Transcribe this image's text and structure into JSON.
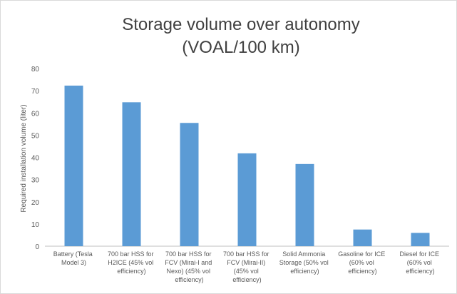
{
  "chart_data": {
    "type": "bar",
    "title": [
      "Storage volume over autonomy",
      "(VOAL/100 km)"
    ],
    "y_label": "Required installation volume (liter)",
    "categories": [
      "Battery (Tesla Model 3)",
      "700 bar HSS for H2ICE (45% vol efficiency)",
      "700 bar HSS for FCV (Mirai-I and Nexo) (45% vol efficiency)",
      "700 bar HSS for FCV (Mirai-II) (45% vol efficiency)",
      "Solid Ammonia Storage (50% vol efficiency)",
      "Gasoline for ICE (60% vol efficiency)",
      "Diesel for ICE (60% vol efficiency)"
    ],
    "values": [
      72.3,
      64.8,
      55.5,
      41.8,
      37,
      7.5,
      6
    ],
    "color": "#5b9bd5",
    "ylim": [
      0,
      80
    ],
    "yticks": [
      0,
      10,
      20,
      30,
      40,
      50,
      60,
      70,
      80
    ],
    "grid": false
  }
}
